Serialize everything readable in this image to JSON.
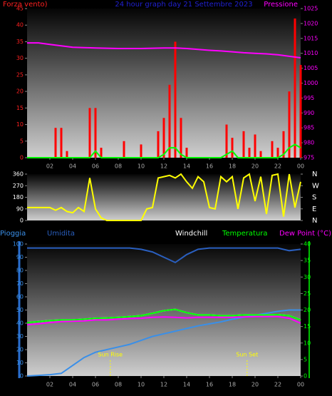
{
  "chart_data": [
    {
      "type": "bar",
      "title": "24 hour graph day  21 Settembre 2023",
      "y_label": "Forza vento)",
      "y2_label": "Pressione",
      "x": [
        0,
        0.5,
        1,
        1.5,
        2,
        2.5,
        3,
        3.5,
        4,
        4.5,
        5,
        5.5,
        6,
        6.5,
        7,
        7.5,
        8,
        8.5,
        9,
        9.5,
        10,
        10.5,
        11,
        11.5,
        12,
        12.5,
        13,
        13.5,
        14,
        14.5,
        15,
        15.5,
        16,
        16.5,
        17,
        17.5,
        18,
        18.5,
        19,
        19.5,
        20,
        20.5,
        21,
        21.5,
        22,
        22.5,
        23,
        23.5,
        24
      ],
      "xlim": [
        0,
        24
      ],
      "xticks": [
        {
          "value": 2,
          "label": "02"
        },
        {
          "value": 4,
          "label": "04"
        },
        {
          "value": 6,
          "label": "06"
        },
        {
          "value": 8,
          "label": "08"
        },
        10,
        12,
        14,
        16,
        18,
        20,
        22,
        {
          "value": 24,
          "label": "00"
        }
      ],
      "ylim": [
        0,
        45
      ],
      "yticks": [
        0,
        5,
        10,
        15,
        20,
        25,
        30,
        35,
        40,
        45
      ],
      "y2lim": [
        975,
        1025
      ],
      "y2ticks": [
        975,
        980,
        985,
        990,
        995,
        1000,
        1005,
        1010,
        1015,
        1020,
        1025
      ],
      "series": [
        {
          "color": "#ff0000",
          "type": "bar",
          "values": [
            0,
            0,
            0,
            0,
            0,
            9,
            9,
            2,
            0,
            0,
            0,
            15,
            15,
            3,
            0,
            0,
            0,
            5,
            0,
            0,
            4,
            0,
            0,
            8,
            12,
            22,
            35,
            12,
            3,
            0,
            0,
            0,
            0,
            0,
            0,
            10,
            6,
            0,
            8,
            3,
            7,
            2,
            0,
            5,
            3,
            8,
            20,
            42,
            28
          ]
        },
        {
          "color": "#00ff00",
          "type": "line",
          "values": [
            0,
            0,
            0,
            0,
            0,
            0,
            0,
            0,
            0,
            0,
            0,
            0,
            2,
            0,
            0,
            0,
            0,
            0,
            0,
            0,
            0,
            0,
            0,
            0,
            1,
            3,
            3,
            1,
            0,
            0,
            0,
            0,
            0,
            0,
            0,
            1,
            2,
            0,
            0,
            0,
            0,
            0,
            0,
            0,
            0,
            1,
            3,
            4,
            3
          ]
        },
        {
          "color": "#ff00ff",
          "type": "line",
          "axis": "y2",
          "x": [
            0,
            1,
            2,
            3,
            4,
            5,
            6,
            7,
            8,
            9,
            10,
            11,
            12,
            13,
            14,
            15,
            16,
            17,
            18,
            19,
            20,
            21,
            22,
            23,
            24
          ],
          "values": [
            1013.5,
            1013.5,
            1013,
            1012.5,
            1012,
            1011.9,
            1011.8,
            1011.7,
            1011.6,
            1011.6,
            1011.6,
            1011.7,
            1011.8,
            1011.8,
            1011.6,
            1011.3,
            1011,
            1010.8,
            1010.5,
            1010.2,
            1010,
            1009.8,
            1009.5,
            1009,
            1008.5
          ]
        }
      ]
    },
    {
      "type": "line",
      "x": [
        0,
        0.5,
        1,
        1.5,
        2,
        2.5,
        3,
        3.5,
        4,
        4.5,
        5,
        5.5,
        6,
        6.5,
        7,
        7.5,
        8,
        8.5,
        9,
        9.5,
        10,
        10.5,
        11,
        11.5,
        12,
        12.5,
        13,
        13.5,
        14,
        14.5,
        15,
        15.5,
        16,
        16.5,
        17,
        17.5,
        18,
        18.5,
        19,
        19.5,
        20,
        20.5,
        21,
        21.5,
        22,
        22.5,
        23,
        23.5,
        24
      ],
      "xlim": [
        0,
        24
      ],
      "ylim": [
        0,
        360
      ],
      "yticks": [
        0,
        90,
        180,
        270,
        360
      ],
      "y2lim": [
        0,
        360
      ],
      "y2ticks": [
        {
          "value": 360,
          "label": "N"
        },
        {
          "value": 270,
          "label": "W"
        },
        {
          "value": 180,
          "label": "S"
        },
        {
          "value": 90,
          "label": "E"
        },
        {
          "value": 0,
          "label": "N"
        }
      ],
      "series": [
        {
          "color": "#ffff00",
          "values": [
            100,
            100,
            100,
            100,
            100,
            80,
            100,
            70,
            60,
            100,
            70,
            330,
            90,
            20,
            0,
            0,
            0,
            0,
            0,
            0,
            0,
            90,
            100,
            330,
            340,
            350,
            330,
            360,
            300,
            250,
            340,
            300,
            100,
            90,
            340,
            300,
            340,
            90,
            330,
            360,
            150,
            340,
            50,
            350,
            360,
            30,
            360,
            100,
            300
          ]
        }
      ]
    },
    {
      "type": "line",
      "x": [
        0,
        1,
        2,
        3,
        4,
        5,
        6,
        7,
        8,
        9,
        10,
        11,
        12,
        13,
        14,
        15,
        16,
        17,
        18,
        19,
        20,
        21,
        22,
        23,
        24
      ],
      "xlim": [
        0,
        24
      ],
      "xticks": [
        {
          "value": 2,
          "label": "02"
        },
        {
          "value": 4,
          "label": "04"
        },
        {
          "value": 6,
          "label": "06"
        },
        {
          "value": 8,
          "label": "08"
        },
        10,
        12,
        14,
        16,
        18,
        20,
        22,
        {
          "value": 24,
          "label": "00"
        }
      ],
      "ylim": [
        0,
        100
      ],
      "yticks": [
        0,
        10,
        20,
        30,
        40,
        50,
        60,
        70,
        80,
        90,
        100
      ],
      "y2lim": [
        0,
        40
      ],
      "y2ticks": [
        0,
        5,
        10,
        15,
        20,
        25,
        30,
        35,
        40
      ],
      "series": [
        {
          "name": "Pioggia",
          "color": "#3a8fe8",
          "values": [
            0,
            0.5,
            1,
            2,
            8,
            14,
            18,
            20,
            22,
            24,
            27,
            30,
            32,
            34,
            36,
            38,
            39.5,
            41,
            43,
            44.5,
            46,
            47.5,
            49,
            50,
            50
          ]
        },
        {
          "name": "Umidita",
          "color": "#2a5fbf",
          "values": [
            97,
            97,
            97,
            97,
            97,
            97,
            97,
            97,
            97,
            97,
            96,
            94,
            90,
            86,
            92,
            96,
            97,
            97,
            97,
            97,
            97,
            97,
            97,
            95,
            96
          ]
        },
        {
          "name": "Windchill",
          "color": "#ffffff",
          "axis": "y2",
          "values": [
            16.2,
            16.5,
            16.8,
            17,
            17,
            17.2,
            17.5,
            17.6,
            17.8,
            18,
            18.3,
            19,
            19.8,
            20.2,
            19.2,
            18.5,
            18.5,
            18.3,
            18.3,
            18.5,
            18.5,
            18.5,
            18.6,
            18.3,
            17
          ]
        },
        {
          "name": "Temperatura",
          "color": "#00ff00",
          "axis": "y2",
          "values": [
            16.2,
            16.5,
            16.8,
            17,
            17,
            17.2,
            17.5,
            17.6,
            17.8,
            18,
            18.3,
            19,
            19.8,
            20.2,
            19.2,
            18.5,
            18.5,
            18.3,
            18.3,
            18.5,
            18.5,
            18.5,
            18.6,
            18.3,
            17
          ]
        },
        {
          "name": "Dew Point (°C)",
          "color": "#ff00ff",
          "axis": "y2",
          "values": [
            15.5,
            15.8,
            16.2,
            16.5,
            16.6,
            16.7,
            17,
            17,
            17.2,
            17.4,
            17.5,
            17.8,
            17.9,
            17.8,
            17.6,
            17.8,
            17.8,
            17.8,
            17.8,
            17.9,
            18,
            18,
            18,
            17.5,
            16
          ]
        }
      ],
      "annotations": [
        {
          "text": "Sun Rise",
          "x": 7.3
        },
        {
          "text": "Sun Set",
          "x": 19.3
        }
      ]
    }
  ]
}
